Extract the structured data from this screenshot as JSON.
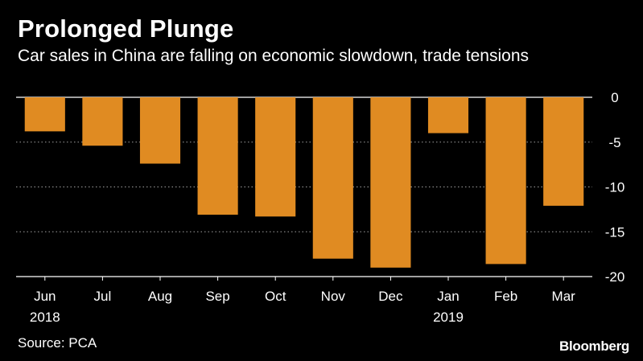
{
  "header": {
    "title": "Prolonged Plunge",
    "subtitle": "Car sales in China are falling on economic slowdown, trade tensions"
  },
  "footer": {
    "source": "Source: PCA",
    "brand": "Bloomberg"
  },
  "colors": {
    "background": "#000000",
    "bar": "#e08b22",
    "text": "#ffffff",
    "gridline": "#a0a0a0"
  },
  "chart_data": {
    "type": "bar",
    "title": "Prolonged Plunge",
    "subtitle": "Car sales in China are falling on economic slowdown, trade tensions",
    "categories": [
      "Jun",
      "Jul",
      "Aug",
      "Sep",
      "Oct",
      "Nov",
      "Dec",
      "Jan",
      "Feb",
      "Mar"
    ],
    "year_labels": [
      {
        "category": "Jun",
        "label": "2018"
      },
      {
        "category": "Jan",
        "label": "2019"
      }
    ],
    "values": [
      -3.8,
      -5.4,
      -7.4,
      -13.1,
      -13.3,
      -18.0,
      -19.0,
      -4.0,
      -18.6,
      -12.1
    ],
    "ylim": [
      -20,
      0
    ],
    "yticks": [
      0,
      -5,
      -10,
      -15,
      -20
    ],
    "y_axis_side": "right",
    "grid": "horizontal dotted",
    "xlabel": "",
    "ylabel": ""
  }
}
